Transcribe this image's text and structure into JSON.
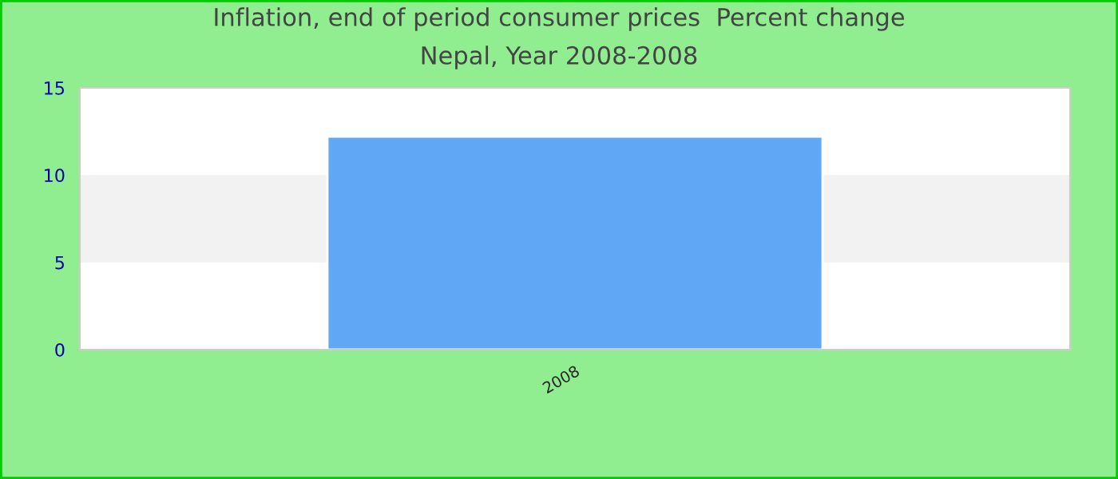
{
  "chart_data": {
    "type": "bar",
    "title": "Inflation, end of period consumer prices  Percent change",
    "subtitle": "Nepal, Year 2008-2008",
    "categories": [
      "2008"
    ],
    "series": [
      {
        "color": "#60a8f5",
        "values": [
          12.2
        ]
      }
    ],
    "ylim": [
      0,
      15
    ],
    "yticks": [
      0,
      5,
      10,
      15
    ],
    "bands": [
      {
        "axis": "y",
        "from": 5,
        "to": 10,
        "color": "#f2f2f2"
      }
    ],
    "grid": false,
    "legend": false
  }
}
